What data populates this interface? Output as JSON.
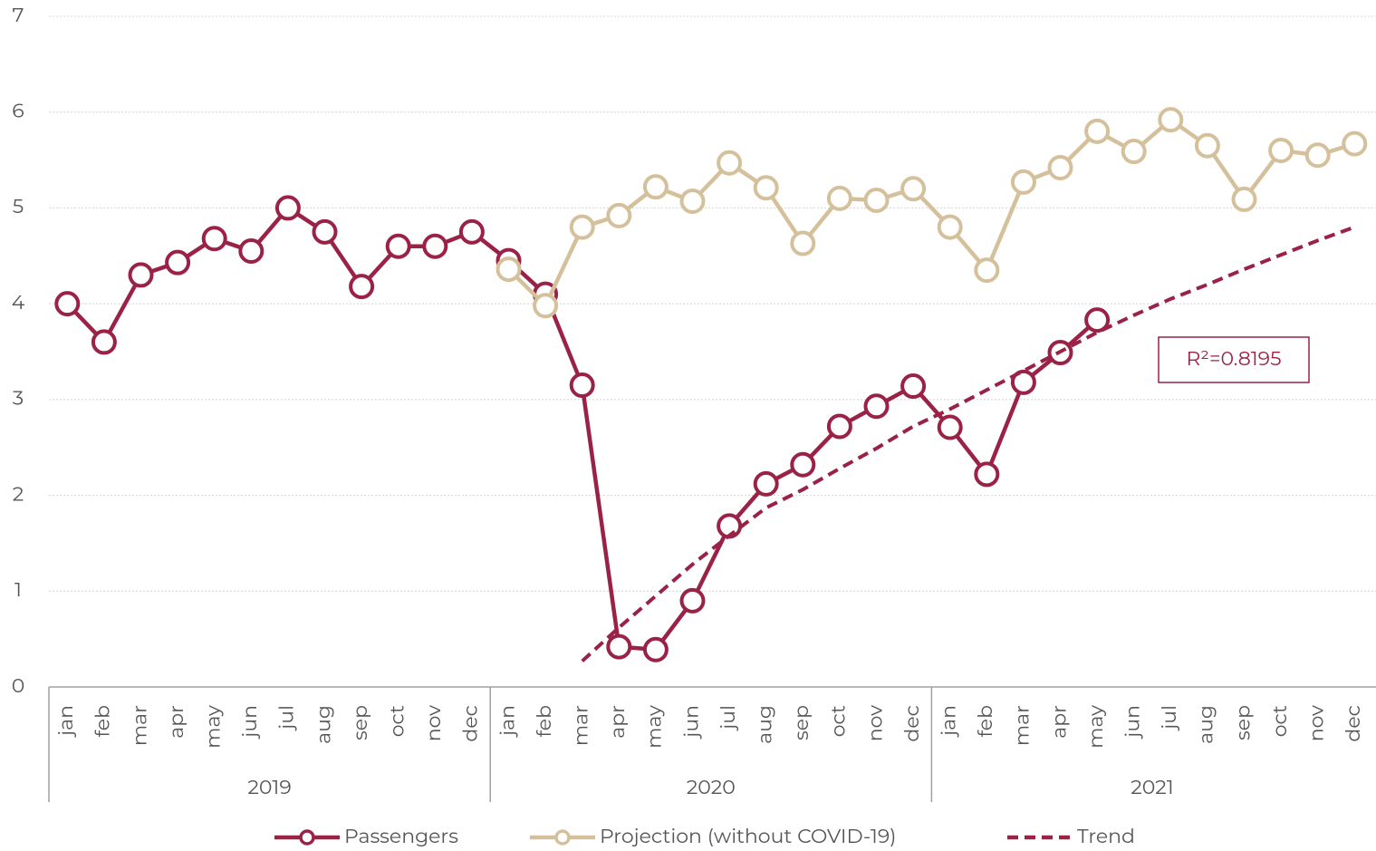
{
  "chart_data": {
    "type": "line",
    "categories": [
      "jan",
      "feb",
      "mar",
      "apr",
      "may",
      "jun",
      "jul",
      "aug",
      "sep",
      "oct",
      "nov",
      "dec",
      "jan",
      "feb",
      "mar",
      "apr",
      "may",
      "jun",
      "jul",
      "aug",
      "sep",
      "oct",
      "nov",
      "dec",
      "jan",
      "feb",
      "mar",
      "apr",
      "may",
      "jun",
      "jul",
      "aug",
      "sep",
      "oct",
      "nov",
      "dec"
    ],
    "years": [
      "2019",
      "2020",
      "2021"
    ],
    "ylim": [
      0,
      7
    ],
    "yticks": [
      0,
      1,
      2,
      3,
      4,
      5,
      6,
      7
    ],
    "grid": true,
    "series": [
      {
        "name": "Passengers",
        "color": "#9b2247",
        "style": "marker",
        "values": [
          4.0,
          3.6,
          4.3,
          4.43,
          4.68,
          4.55,
          5.0,
          4.75,
          4.18,
          4.6,
          4.6,
          4.75,
          4.45,
          4.1,
          3.15,
          0.42,
          0.39,
          0.9,
          1.68,
          2.12,
          2.32,
          2.72,
          2.93,
          3.14,
          2.71,
          2.22,
          3.18,
          3.49,
          3.83,
          null,
          null,
          null,
          null,
          null,
          null,
          null
        ]
      },
      {
        "name": "Projection (without COVID-19)",
        "color": "#d4c19c",
        "style": "marker",
        "values": [
          null,
          null,
          null,
          null,
          null,
          null,
          null,
          null,
          null,
          null,
          null,
          null,
          4.36,
          3.98,
          4.8,
          4.92,
          5.22,
          5.07,
          5.47,
          5.21,
          4.63,
          5.1,
          5.08,
          5.2,
          4.8,
          4.35,
          5.27,
          5.42,
          5.8,
          5.59,
          5.92,
          5.65,
          5.09,
          5.6,
          5.55,
          5.67
        ]
      },
      {
        "name": "Trend",
        "color": "#9b2247",
        "style": "dashed",
        "values": [
          null,
          null,
          null,
          null,
          null,
          null,
          null,
          null,
          null,
          null,
          null,
          null,
          null,
          null,
          0.27,
          0.62,
          0.95,
          1.28,
          1.58,
          1.87,
          2.06,
          2.28,
          2.49,
          2.72,
          2.9,
          3.1,
          3.3,
          3.5,
          3.7,
          3.88,
          4.05,
          4.2,
          4.36,
          4.51,
          4.66,
          4.8
        ]
      }
    ],
    "annotation": "R²=0.8195"
  }
}
